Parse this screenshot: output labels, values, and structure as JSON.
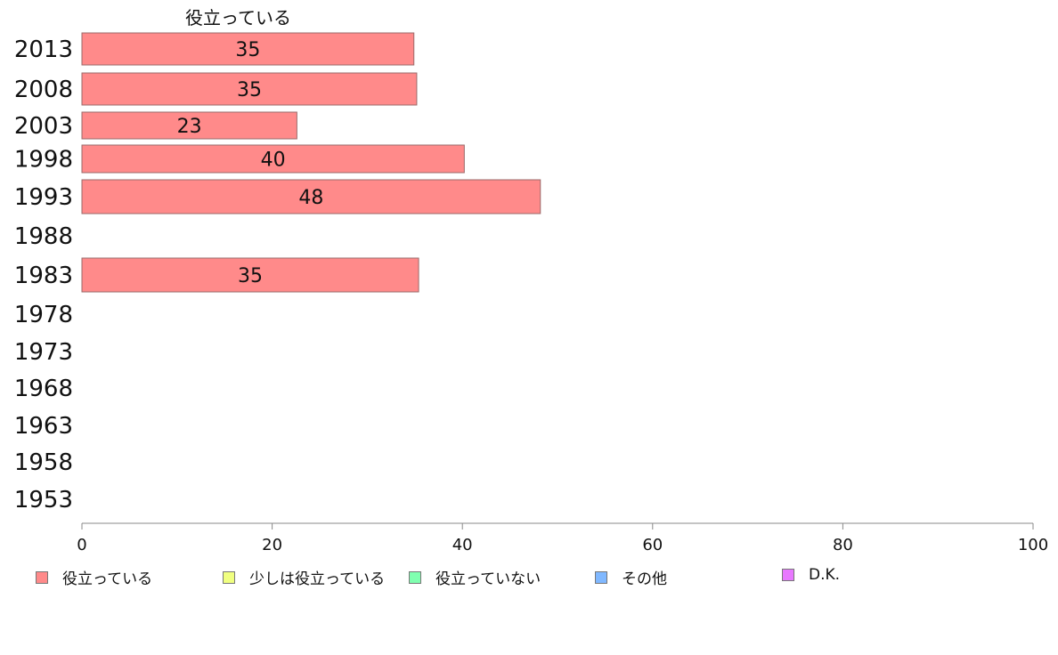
{
  "series_title": "役立っている",
  "colors": {
    "bar_fill": "#ff8a8a",
    "bar_stroke": "#9a6a6a",
    "axis": "#888888"
  },
  "legend": [
    {
      "label": "役立っている",
      "color": "#ff8a8a"
    },
    {
      "label": "少しは役立っている",
      "color": "#f0ff80"
    },
    {
      "label": "役立っていない",
      "color": "#80ffb0"
    },
    {
      "label": "その他",
      "color": "#80b8ff"
    },
    {
      "label": "D.K.",
      "color": "#e878ff"
    }
  ],
  "chart_data": {
    "type": "bar",
    "orientation": "horizontal",
    "title": "",
    "xlabel": "",
    "ylabel": "",
    "xlim": [
      0,
      100
    ],
    "xticks": [
      0,
      20,
      40,
      60,
      80,
      100
    ],
    "categories": [
      "2013",
      "2008",
      "2003",
      "1998",
      "1993",
      "1988",
      "1983",
      "1978",
      "1973",
      "1968",
      "1963",
      "1958",
      "1953"
    ],
    "series": [
      {
        "name": "役立っている",
        "values": [
          34.9,
          35.2,
          22.6,
          40.2,
          48.2,
          null,
          35.4,
          null,
          null,
          null,
          null,
          null,
          null
        ],
        "data_labels": [
          "35",
          "35",
          "23",
          "40",
          "48",
          "",
          "35",
          "",
          "",
          "",
          "",
          "",
          ""
        ]
      }
    ],
    "grid": false,
    "legend_position": "bottom"
  }
}
